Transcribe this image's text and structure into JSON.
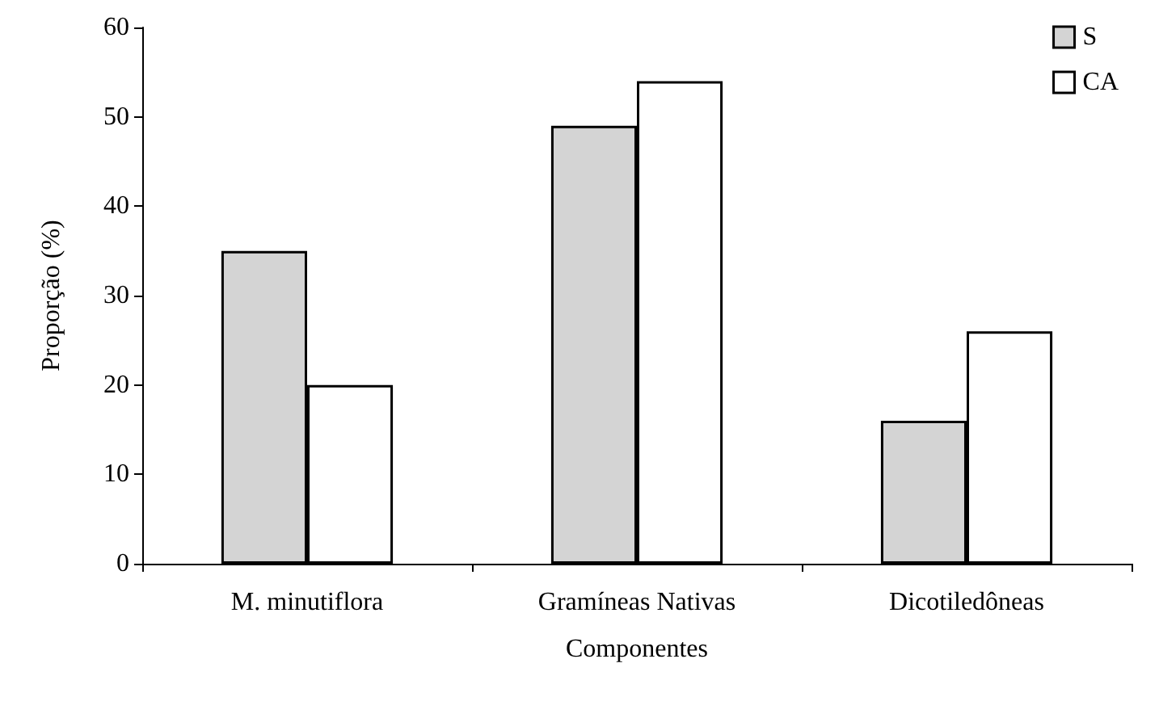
{
  "chart_data": {
    "type": "bar",
    "xlabel": "Componentes",
    "ylabel": "Proporção (%)",
    "categories": [
      "M. minutiflora",
      "Gramíneas Nativas",
      "Dicotiledôneas"
    ],
    "series": [
      {
        "name": "S",
        "color": "#d4d4d4",
        "values": [
          35,
          49,
          16
        ]
      },
      {
        "name": "CA",
        "color": "#ffffff",
        "values": [
          20,
          54,
          26
        ]
      }
    ],
    "ylim": [
      0,
      60
    ],
    "yticks": [
      0,
      10,
      20,
      30,
      40,
      50,
      60
    ],
    "grid": false,
    "legend": "top right"
  }
}
